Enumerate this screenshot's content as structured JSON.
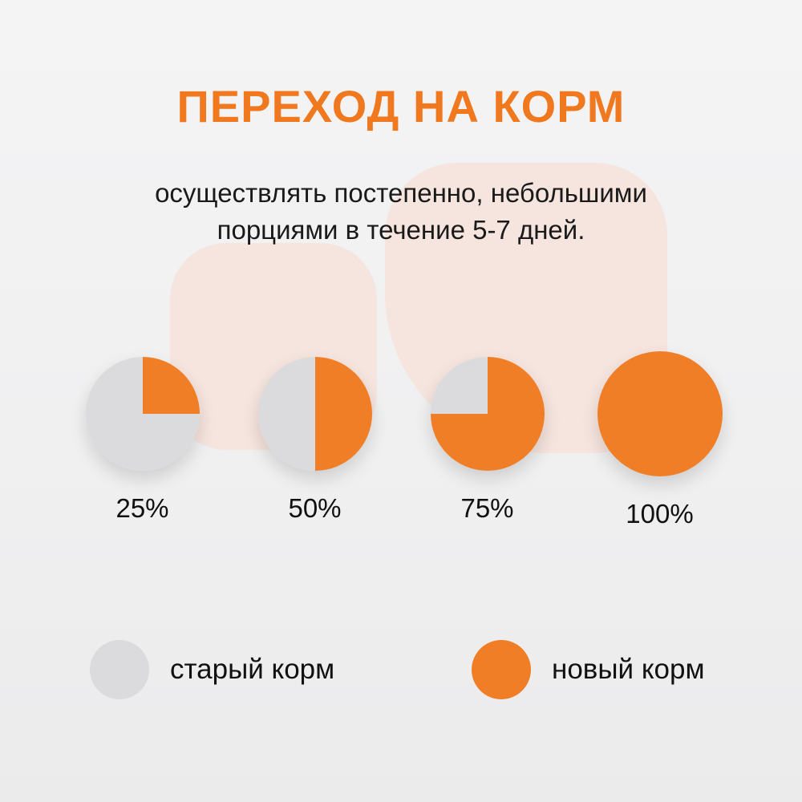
{
  "title": "ПЕРЕХОД НА КОРМ",
  "subtitle_line1": "осуществлять постепенно, небольшими",
  "subtitle_line2": "порциями в течение 5-7 дней.",
  "colors": {
    "title_orange": "#f0791f",
    "new_food_orange": "#f07e26",
    "old_food_gray": "#dbdbdd",
    "blob_pink": "#f6e4de",
    "background": "#f0f0f1",
    "text_dark": "#1a1a1a"
  },
  "chart_data": {
    "type": "pie",
    "title": "ПЕРЕХОД НА КОРМ",
    "subtitle": "осуществлять постепенно, небольшими порциями в течение 5-7 дней.",
    "colors": {
      "new_food": "#f07e26",
      "old_food": "#dbdbdd"
    },
    "series": [
      {
        "label": "25%",
        "new_food_pct": 25,
        "old_food_pct": 75
      },
      {
        "label": "50%",
        "new_food_pct": 50,
        "old_food_pct": 50
      },
      {
        "label": "75%",
        "new_food_pct": 75,
        "old_food_pct": 25
      },
      {
        "label": "100%",
        "new_food_pct": 100,
        "old_food_pct": 0
      }
    ],
    "legend": [
      {
        "label": "старый корм",
        "color": "#dbdbdd"
      },
      {
        "label": "новый корм",
        "color": "#f07e26"
      }
    ],
    "legend_position": "bottom"
  }
}
